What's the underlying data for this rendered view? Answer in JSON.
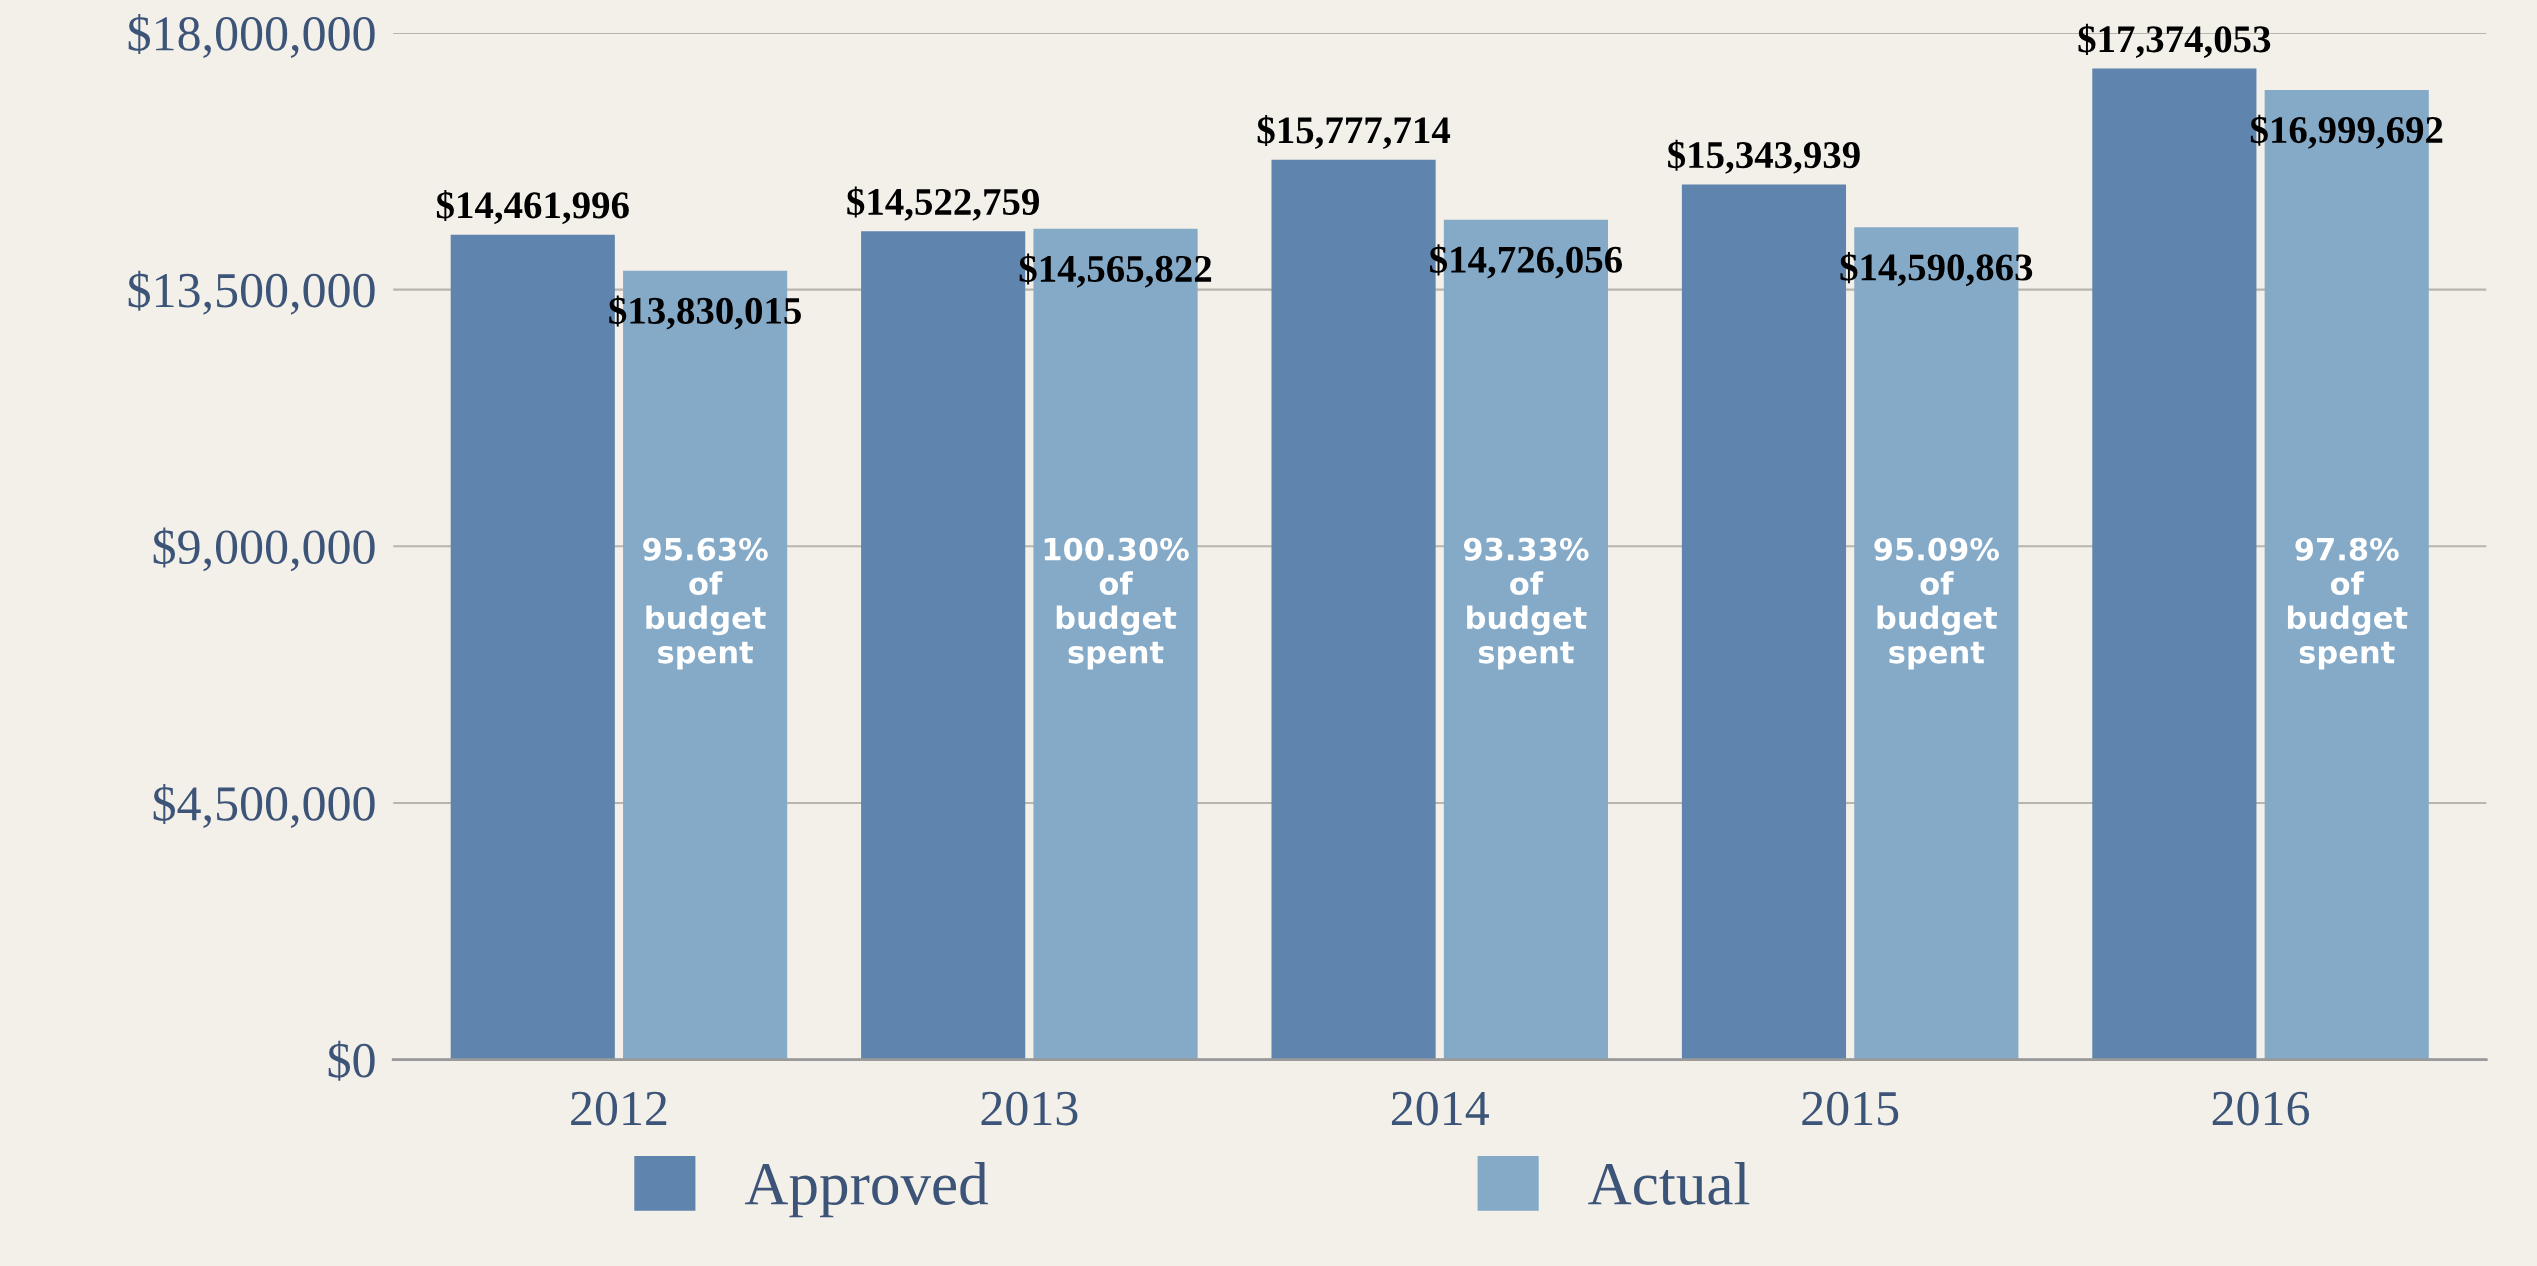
{
  "chart_data": {
    "type": "bar",
    "categories": [
      "2012",
      "2013",
      "2014",
      "2015",
      "2016"
    ],
    "series": [
      {
        "name": "Approved",
        "color": "#5f84ad",
        "values": [
          14461996,
          14522759,
          15777714,
          15343939,
          17374053
        ],
        "value_labels": [
          "$14,461,996",
          "$14,522,759",
          "$15,777,714",
          "$15,343,939",
          "$17,374,053"
        ]
      },
      {
        "name": "Actual",
        "color": "#85aac8",
        "values": [
          13830015,
          14565822,
          14726056,
          14590863,
          16999692
        ],
        "value_labels": [
          "$13,830,015",
          "$14,565,822",
          "$14,726,056",
          "$14,590,863",
          "$16,999,692"
        ]
      }
    ],
    "ylim": [
      0,
      18000000
    ],
    "yticks": [
      {
        "value": 0,
        "label": "$0"
      },
      {
        "value": 4500000,
        "label": "$4,500,000"
      },
      {
        "value": 9000000,
        "label": "$9,000,000"
      },
      {
        "value": 13500000,
        "label": "$13,500,000"
      },
      {
        "value": 18000000,
        "label": "$18,000,000"
      }
    ],
    "grid": "y",
    "legend": "bottom",
    "annotations": [
      {
        "text": "95.63%\nof\nbudget\nspent",
        "x": "2012",
        "y": 8000000
      },
      {
        "text": "100.30%\nof\nbudget\nspent",
        "x": "2013",
        "y": 8000000
      },
      {
        "text": "93.33%\nof\nbudget\nspent",
        "x": "2014",
        "y": 8000000
      },
      {
        "text": "95.09%\nof\nbudget\nspent",
        "x": "2015",
        "y": 8000000
      },
      {
        "text": "97.8%\nof\nbudget\nspent",
        "x": "2016",
        "y": 8000000
      }
    ]
  }
}
